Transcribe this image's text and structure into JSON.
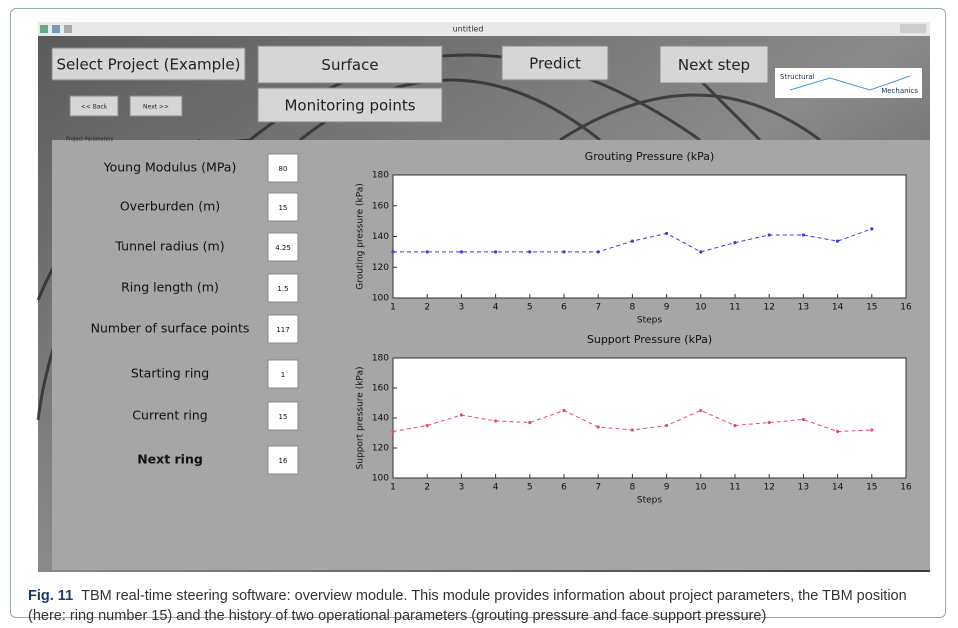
{
  "window": {
    "title": "untitled"
  },
  "buttons": {
    "select_project": "Select Project (Example)",
    "surface": "Surface",
    "predict": "Predict",
    "next_step": "Next step",
    "back": "<< Back",
    "next": "Next >>",
    "monitoring_points": "Monitoring points"
  },
  "logo": {
    "line1": "Structural",
    "line2": "Mechanics"
  },
  "panel": {
    "title": "Project Parameters",
    "parameters": [
      {
        "label": "Young Modulus (MPa)",
        "value": 80
      },
      {
        "label": "Overburden (m)",
        "value": 15
      },
      {
        "label": "Tunnel radius (m)",
        "value": 4.25
      },
      {
        "label": "Ring length (m)",
        "value": 1.5
      },
      {
        "label": "Number of surface points",
        "value": 117
      },
      {
        "label": "Starting ring",
        "value": 1
      },
      {
        "label": "Current ring",
        "value": 15
      },
      {
        "label": "Next ring",
        "value": 16
      }
    ]
  },
  "chart_data": [
    {
      "type": "line",
      "title": "Grouting Pressure (kPa)",
      "x_label": "Steps",
      "y_label": "Grouting pressure (kPa)",
      "x": [
        1,
        2,
        3,
        4,
        5,
        6,
        7,
        8,
        9,
        10,
        11,
        12,
        13,
        14,
        15
      ],
      "series": [
        {
          "color": "#3b3be0",
          "values": [
            130,
            130,
            130,
            130,
            130,
            130,
            130,
            137,
            142,
            130,
            136,
            141,
            141,
            137,
            145
          ]
        }
      ],
      "xlim": [
        1,
        16
      ],
      "xticks": [
        1,
        2,
        3,
        4,
        5,
        6,
        7,
        8,
        9,
        10,
        11,
        12,
        13,
        14,
        15,
        16
      ],
      "ylim": [
        100,
        180
      ],
      "yticks": [
        100,
        120,
        140,
        160,
        180
      ]
    },
    {
      "type": "line",
      "title": "Support Pressure (kPa)",
      "x_label": "Steps",
      "y_label": "Support pressure (kPa)",
      "x": [
        1,
        2,
        3,
        4,
        5,
        6,
        7,
        8,
        9,
        10,
        11,
        12,
        13,
        14,
        15
      ],
      "series": [
        {
          "color": "#e0506a",
          "values": [
            131,
            135,
            142,
            138,
            137,
            145,
            134,
            132,
            135,
            145,
            135,
            137,
            139,
            131,
            132
          ]
        }
      ],
      "xlim": [
        1,
        16
      ],
      "xticks": [
        1,
        2,
        3,
        4,
        5,
        6,
        7,
        8,
        9,
        10,
        11,
        12,
        13,
        14,
        15,
        16
      ],
      "ylim": [
        100,
        180
      ],
      "yticks": [
        100,
        120,
        140,
        160,
        180
      ]
    }
  ],
  "caption": {
    "label": "Fig. 11",
    "text": "TBM real-time steering software: overview module. This module provides information about project parameters, the TBM position (here: ring number 15) and the history of two operational parameters (grouting pressure and face support pressure)"
  }
}
